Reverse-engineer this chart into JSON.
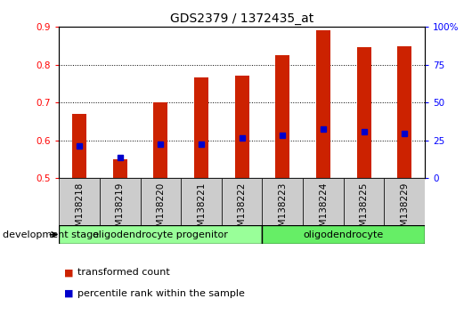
{
  "title": "GDS2379 / 1372435_at",
  "samples": [
    "GSM138218",
    "GSM138219",
    "GSM138220",
    "GSM138221",
    "GSM138222",
    "GSM138223",
    "GSM138224",
    "GSM138225",
    "GSM138229"
  ],
  "transformed_count": [
    0.67,
    0.55,
    0.7,
    0.765,
    0.77,
    0.825,
    0.89,
    0.847,
    0.848
  ],
  "percentile_rank": [
    0.585,
    0.555,
    0.59,
    0.59,
    0.607,
    0.613,
    0.63,
    0.622,
    0.617
  ],
  "bar_bottom": 0.5,
  "ylim": [
    0.5,
    0.9
  ],
  "yticks_left": [
    0.5,
    0.6,
    0.7,
    0.8,
    0.9
  ],
  "yticks_right": [
    0,
    25,
    50,
    75,
    100
  ],
  "bar_color": "#cc2200",
  "dot_color": "#0000cc",
  "grid_color": "#000000",
  "background_color": "#ffffff",
  "xticklabel_bg": "#cccccc",
  "groups": [
    {
      "label": "oligodendrocyte progenitor",
      "start": 0,
      "end": 5,
      "color": "#99ff99"
    },
    {
      "label": "oligodendrocyte",
      "start": 5,
      "end": 9,
      "color": "#66ee66"
    }
  ],
  "group_label_prefix": "development stage",
  "legend_items": [
    {
      "color": "#cc2200",
      "label": "transformed count"
    },
    {
      "color": "#0000cc",
      "label": "percentile rank within the sample"
    }
  ],
  "title_fontsize": 10,
  "tick_fontsize": 7.5,
  "label_fontsize": 8,
  "group_fontsize": 8,
  "bar_width": 0.35
}
